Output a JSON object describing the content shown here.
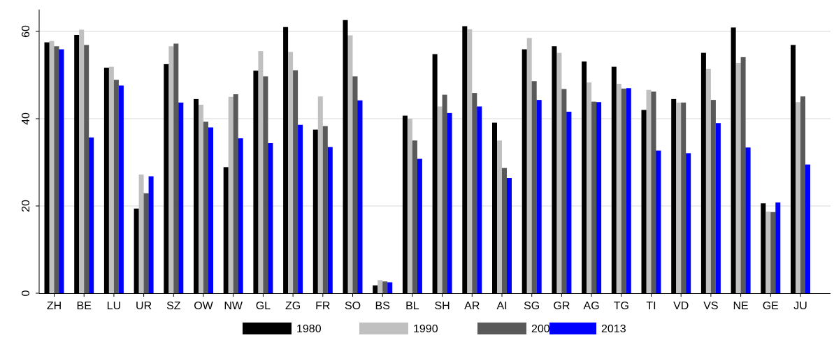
{
  "chart_data": {
    "type": "bar",
    "title": "",
    "xlabel": "",
    "ylabel": "",
    "ylim": [
      0,
      65
    ],
    "yticks": [
      0,
      20,
      40,
      60
    ],
    "grid": "horizontal",
    "legend_position": "bottom",
    "categories": [
      "ZH",
      "BE",
      "LU",
      "UR",
      "SZ",
      "OW",
      "NW",
      "GL",
      "ZG",
      "FR",
      "SO",
      "BS",
      "BL",
      "SH",
      "AR",
      "AI",
      "SG",
      "GR",
      "AG",
      "TG",
      "TI",
      "VD",
      "VS",
      "NE",
      "GE",
      "JU"
    ],
    "series": [
      {
        "name": "1980",
        "color": "#000000",
        "values": [
          57.5,
          59.2,
          51.7,
          19.4,
          52.5,
          44.5,
          28.9,
          51.0,
          61.0,
          37.5,
          62.6,
          1.8,
          40.7,
          54.8,
          61.2,
          39.1,
          55.9,
          56.6,
          53.1,
          51.9,
          42.0,
          44.5,
          55.1,
          60.9,
          20.6,
          56.9
        ]
      },
      {
        "name": "1990",
        "color": "#c0c0c0",
        "values": [
          57.8,
          60.4,
          51.9,
          27.2,
          56.6,
          43.2,
          45.0,
          55.5,
          55.3,
          45.1,
          59.1,
          3.0,
          40.0,
          42.8,
          60.5,
          35.0,
          58.5,
          55.1,
          48.3,
          48.0,
          46.6,
          43.7,
          51.4,
          52.8,
          18.7,
          43.8
        ]
      },
      {
        "name": "2000",
        "color": "#595959",
        "values": [
          56.6,
          56.9,
          48.9,
          22.9,
          57.2,
          39.3,
          45.6,
          49.7,
          51.1,
          38.3,
          49.7,
          2.7,
          35.0,
          45.5,
          45.9,
          28.7,
          48.6,
          46.8,
          43.9,
          46.9,
          46.2,
          43.7,
          44.3,
          54.1,
          18.6,
          45.1
        ]
      },
      {
        "name": "2013",
        "color": "#0000ff",
        "values": [
          55.9,
          35.7,
          47.6,
          26.8,
          43.7,
          38.0,
          35.5,
          34.4,
          38.6,
          33.5,
          44.2,
          2.5,
          30.8,
          41.3,
          42.8,
          26.4,
          44.3,
          41.6,
          43.8,
          47.0,
          32.7,
          32.1,
          39.0,
          33.4,
          20.8,
          29.5
        ]
      }
    ]
  }
}
